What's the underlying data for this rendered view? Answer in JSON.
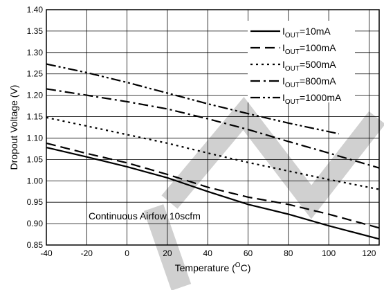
{
  "chart_data": {
    "type": "line",
    "xlabel": "Temperature (",
    "xlabel_sup": "O",
    "xlabel_unit": "C)",
    "ylabel": "Dropout Voltage (V)",
    "xlim": [
      -40,
      125
    ],
    "ylim": [
      0.85,
      1.4
    ],
    "x_ticks": [
      -40,
      -20,
      0,
      20,
      40,
      60,
      80,
      100,
      120
    ],
    "y_ticks": [
      "0.85",
      "0.90",
      "0.95",
      "1.00",
      "1.05",
      "1.10",
      "1.15",
      "1.20",
      "1.25",
      "1.30",
      "1.35",
      "1.40"
    ],
    "grid": true,
    "legend_position": "top-right",
    "annotation": "Continuous Airfow 10scfm",
    "series": [
      {
        "name": "IOUT=10mA",
        "label_main": "I",
        "label_sub": "OUT",
        "label_rest": "=10mA",
        "dash": "solid",
        "x": [
          -40,
          -20,
          0,
          20,
          40,
          60,
          80,
          100,
          125
        ],
        "y": [
          1.078,
          1.056,
          1.033,
          1.007,
          0.975,
          0.945,
          0.922,
          0.895,
          0.864
        ]
      },
      {
        "name": "IOUT=100mA",
        "label_main": "I",
        "label_sub": "OUT",
        "label_rest": "=100mA",
        "dash": "dash",
        "x": [
          -40,
          -20,
          0,
          20,
          40,
          60,
          80,
          100,
          125
        ],
        "y": [
          1.088,
          1.064,
          1.042,
          1.015,
          0.985,
          0.962,
          0.945,
          0.922,
          0.89
        ]
      },
      {
        "name": "IOUT=500mA",
        "label_main": "I",
        "label_sub": "OUT",
        "label_rest": "=500mA",
        "dash": "dot",
        "x": [
          -40,
          -20,
          0,
          20,
          40,
          60,
          80,
          100,
          125
        ],
        "y": [
          1.148,
          1.128,
          1.108,
          1.088,
          1.065,
          1.043,
          1.023,
          1.003,
          0.98
        ]
      },
      {
        "name": "IOUT=800mA",
        "label_main": "I",
        "label_sub": "OUT",
        "label_rest": "=800mA",
        "dash": "dashdot",
        "x": [
          -40,
          -20,
          0,
          20,
          40,
          60,
          80,
          100,
          125
        ],
        "y": [
          1.215,
          1.2,
          1.185,
          1.168,
          1.145,
          1.12,
          1.092,
          1.065,
          1.03
        ]
      },
      {
        "name": "IOUT=1000mA",
        "label_main": "I",
        "label_sub": "OUT",
        "label_rest": "=1000mA",
        "dash": "dashdotdot",
        "x": [
          -40,
          -20,
          0,
          20,
          40,
          60,
          80,
          105
        ],
        "y": [
          1.273,
          1.253,
          1.23,
          1.205,
          1.18,
          1.157,
          1.135,
          1.11
        ]
      }
    ]
  }
}
